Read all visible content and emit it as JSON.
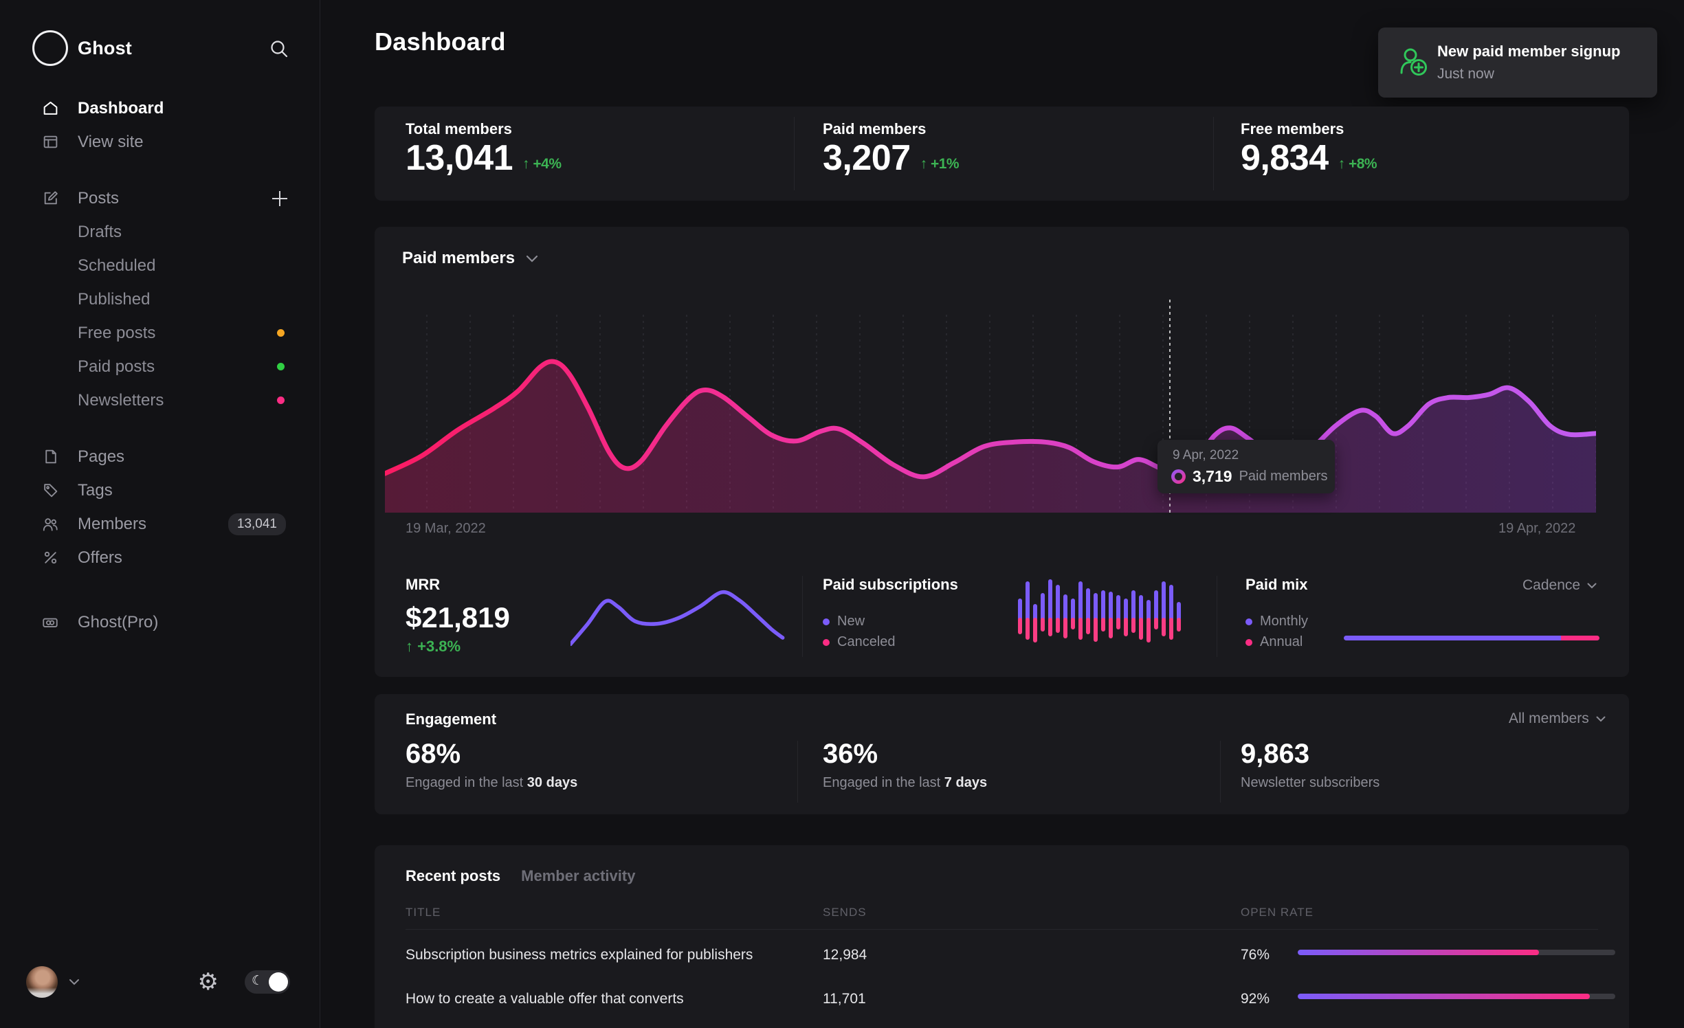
{
  "colors": {
    "accent_purple": "#7b5cfa",
    "accent_pink": "#fb2d84",
    "green": "#3cb353",
    "dot_orange": "#f5a623",
    "dot_green": "#30cf43",
    "dot_pink": "#fb2d84"
  },
  "sidebar": {
    "brand": "Ghost",
    "items": {
      "dashboard": "Dashboard",
      "view_site": "View site",
      "posts": "Posts",
      "drafts": "Drafts",
      "scheduled": "Scheduled",
      "published": "Published",
      "free_posts": "Free posts",
      "paid_posts": "Paid posts",
      "newsletters": "Newsletters",
      "pages": "Pages",
      "tags": "Tags",
      "members": "Members",
      "members_badge": "13,041",
      "offers": "Offers",
      "ghost_pro": "Ghost(Pro)"
    }
  },
  "header": {
    "title": "Dashboard"
  },
  "toast": {
    "title": "New paid member signup",
    "time": "Just now"
  },
  "stats": {
    "items": [
      {
        "label": "Total members",
        "value": "13,041",
        "delta": "↑ +4%"
      },
      {
        "label": "Paid members",
        "value": "3,207",
        "delta": "↑ +1%"
      },
      {
        "label": "Free members",
        "value": "9,834",
        "delta": "↑ +8%"
      }
    ]
  },
  "paid_chart": {
    "title": "Paid members",
    "start_label": "19 Mar, 2022",
    "end_label": "19 Apr, 2022",
    "tooltip": {
      "date": "9 Apr, 2022",
      "value": "3,719",
      "label": "Paid members"
    }
  },
  "mrr": {
    "label": "MRR",
    "value": "$21,819",
    "delta": "↑ +3.8%"
  },
  "paid_subscriptions": {
    "title": "Paid subscriptions",
    "legend_new": "New",
    "legend_canceled": "Canceled"
  },
  "paid_mix": {
    "title": "Paid mix",
    "dropdown": "Cadence",
    "legend_monthly": "Monthly",
    "legend_annual": "Annual"
  },
  "engagement": {
    "title": "Engagement",
    "dropdown": "All members",
    "cols": [
      {
        "value": "68%",
        "caption_prefix": "Engaged in the last ",
        "caption_strong": "30 days"
      },
      {
        "value": "36%",
        "caption_prefix": "Engaged in the last ",
        "caption_strong": "7 days"
      },
      {
        "value": "9,863",
        "caption_prefix": "Newsletter subscribers",
        "caption_strong": ""
      }
    ]
  },
  "posts_table": {
    "tab_recent": "Recent posts",
    "tab_activity": "Member activity",
    "headers": {
      "title": "TITLE",
      "sends": "SENDS",
      "open_rate": "OPEN RATE"
    },
    "rows": [
      {
        "title": "Subscription business metrics explained for publishers",
        "sends": "12,984",
        "open_rate": "76%",
        "pct": 76
      },
      {
        "title": "How to create a valuable offer that converts",
        "sends": "11,701",
        "open_rate": "92%",
        "pct": 92
      }
    ]
  },
  "chart_data": [
    {
      "type": "area",
      "title": "Paid members",
      "x_range": [
        "19 Mar, 2022",
        "19 Apr, 2022"
      ],
      "y_axis_hidden": true,
      "hover": {
        "x_frac": 0.648,
        "date": "9 Apr, 2022",
        "value": 3719,
        "series": "Paid members"
      },
      "points_norm": [
        [
          0.0,
          0.82
        ],
        [
          0.03,
          0.74
        ],
        [
          0.06,
          0.62
        ],
        [
          0.09,
          0.52
        ],
        [
          0.11,
          0.44
        ],
        [
          0.128,
          0.33
        ],
        [
          0.14,
          0.305
        ],
        [
          0.152,
          0.36
        ],
        [
          0.168,
          0.52
        ],
        [
          0.185,
          0.72
        ],
        [
          0.198,
          0.795
        ],
        [
          0.212,
          0.76
        ],
        [
          0.232,
          0.6
        ],
        [
          0.252,
          0.47
        ],
        [
          0.265,
          0.435
        ],
        [
          0.28,
          0.47
        ],
        [
          0.3,
          0.56
        ],
        [
          0.32,
          0.645
        ],
        [
          0.34,
          0.67
        ],
        [
          0.36,
          0.625
        ],
        [
          0.375,
          0.615
        ],
        [
          0.395,
          0.68
        ],
        [
          0.42,
          0.78
        ],
        [
          0.445,
          0.835
        ],
        [
          0.47,
          0.77
        ],
        [
          0.495,
          0.695
        ],
        [
          0.52,
          0.675
        ],
        [
          0.545,
          0.675
        ],
        [
          0.565,
          0.7
        ],
        [
          0.585,
          0.765
        ],
        [
          0.605,
          0.79
        ],
        [
          0.622,
          0.755
        ],
        [
          0.638,
          0.79
        ],
        [
          0.652,
          0.825
        ],
        [
          0.668,
          0.77
        ],
        [
          0.685,
          0.645
        ],
        [
          0.698,
          0.61
        ],
        [
          0.712,
          0.655
        ],
        [
          0.728,
          0.72
        ],
        [
          0.745,
          0.75
        ],
        [
          0.762,
          0.72
        ],
        [
          0.785,
          0.6
        ],
        [
          0.805,
          0.53
        ],
        [
          0.818,
          0.555
        ],
        [
          0.832,
          0.635
        ],
        [
          0.845,
          0.6
        ],
        [
          0.862,
          0.5
        ],
        [
          0.878,
          0.47
        ],
        [
          0.895,
          0.47
        ],
        [
          0.912,
          0.455
        ],
        [
          0.928,
          0.425
        ],
        [
          0.945,
          0.49
        ],
        [
          0.962,
          0.6
        ],
        [
          0.978,
          0.64
        ],
        [
          1.0,
          0.635
        ]
      ],
      "line_gradient": [
        "#fa1b63",
        "#ef35a5",
        "#c94be0",
        "#c25cf0"
      ],
      "fill_gradient": [
        "rgba(244,30,120,0.28)",
        "rgba(200,40,160,0.28)",
        "rgba(158,62,224,0.30)"
      ],
      "gridline_spacing_px": 63
    },
    {
      "type": "line",
      "title": "MRR",
      "stroke": "#7b5cfa",
      "points_norm": [
        [
          0.0,
          0.97
        ],
        [
          0.08,
          0.62
        ],
        [
          0.16,
          0.24
        ],
        [
          0.22,
          0.33
        ],
        [
          0.3,
          0.58
        ],
        [
          0.4,
          0.62
        ],
        [
          0.5,
          0.52
        ],
        [
          0.6,
          0.32
        ],
        [
          0.7,
          0.08
        ],
        [
          0.78,
          0.22
        ],
        [
          0.86,
          0.48
        ],
        [
          0.93,
          0.72
        ],
        [
          0.98,
          0.86
        ]
      ]
    },
    {
      "type": "bar",
      "title": "Paid subscriptions",
      "baseline": "center",
      "series": [
        {
          "name": "New",
          "color": "#7b5cfa",
          "values": [
            30,
            55,
            22,
            38,
            58,
            50,
            36,
            30,
            55,
            45,
            38,
            42,
            40,
            35,
            30,
            42,
            35,
            28,
            42,
            55,
            50,
            25
          ]
        },
        {
          "name": "Canceled",
          "color": "#fb3d84",
          "values": [
            22,
            30,
            34,
            18,
            25,
            20,
            28,
            15,
            30,
            22,
            33,
            18,
            28,
            15,
            25,
            20,
            30,
            34,
            15,
            25,
            30,
            18
          ]
        }
      ]
    },
    {
      "type": "stacked-bar",
      "title": "Paid mix",
      "categories": [
        "Monthly",
        "Annual"
      ],
      "values_pct": [
        85,
        15
      ],
      "colors": [
        "#7b5cfa",
        "#fb2d84"
      ]
    },
    {
      "type": "table-bars",
      "title": "Open rate",
      "values_pct": [
        76,
        92
      ]
    }
  ]
}
